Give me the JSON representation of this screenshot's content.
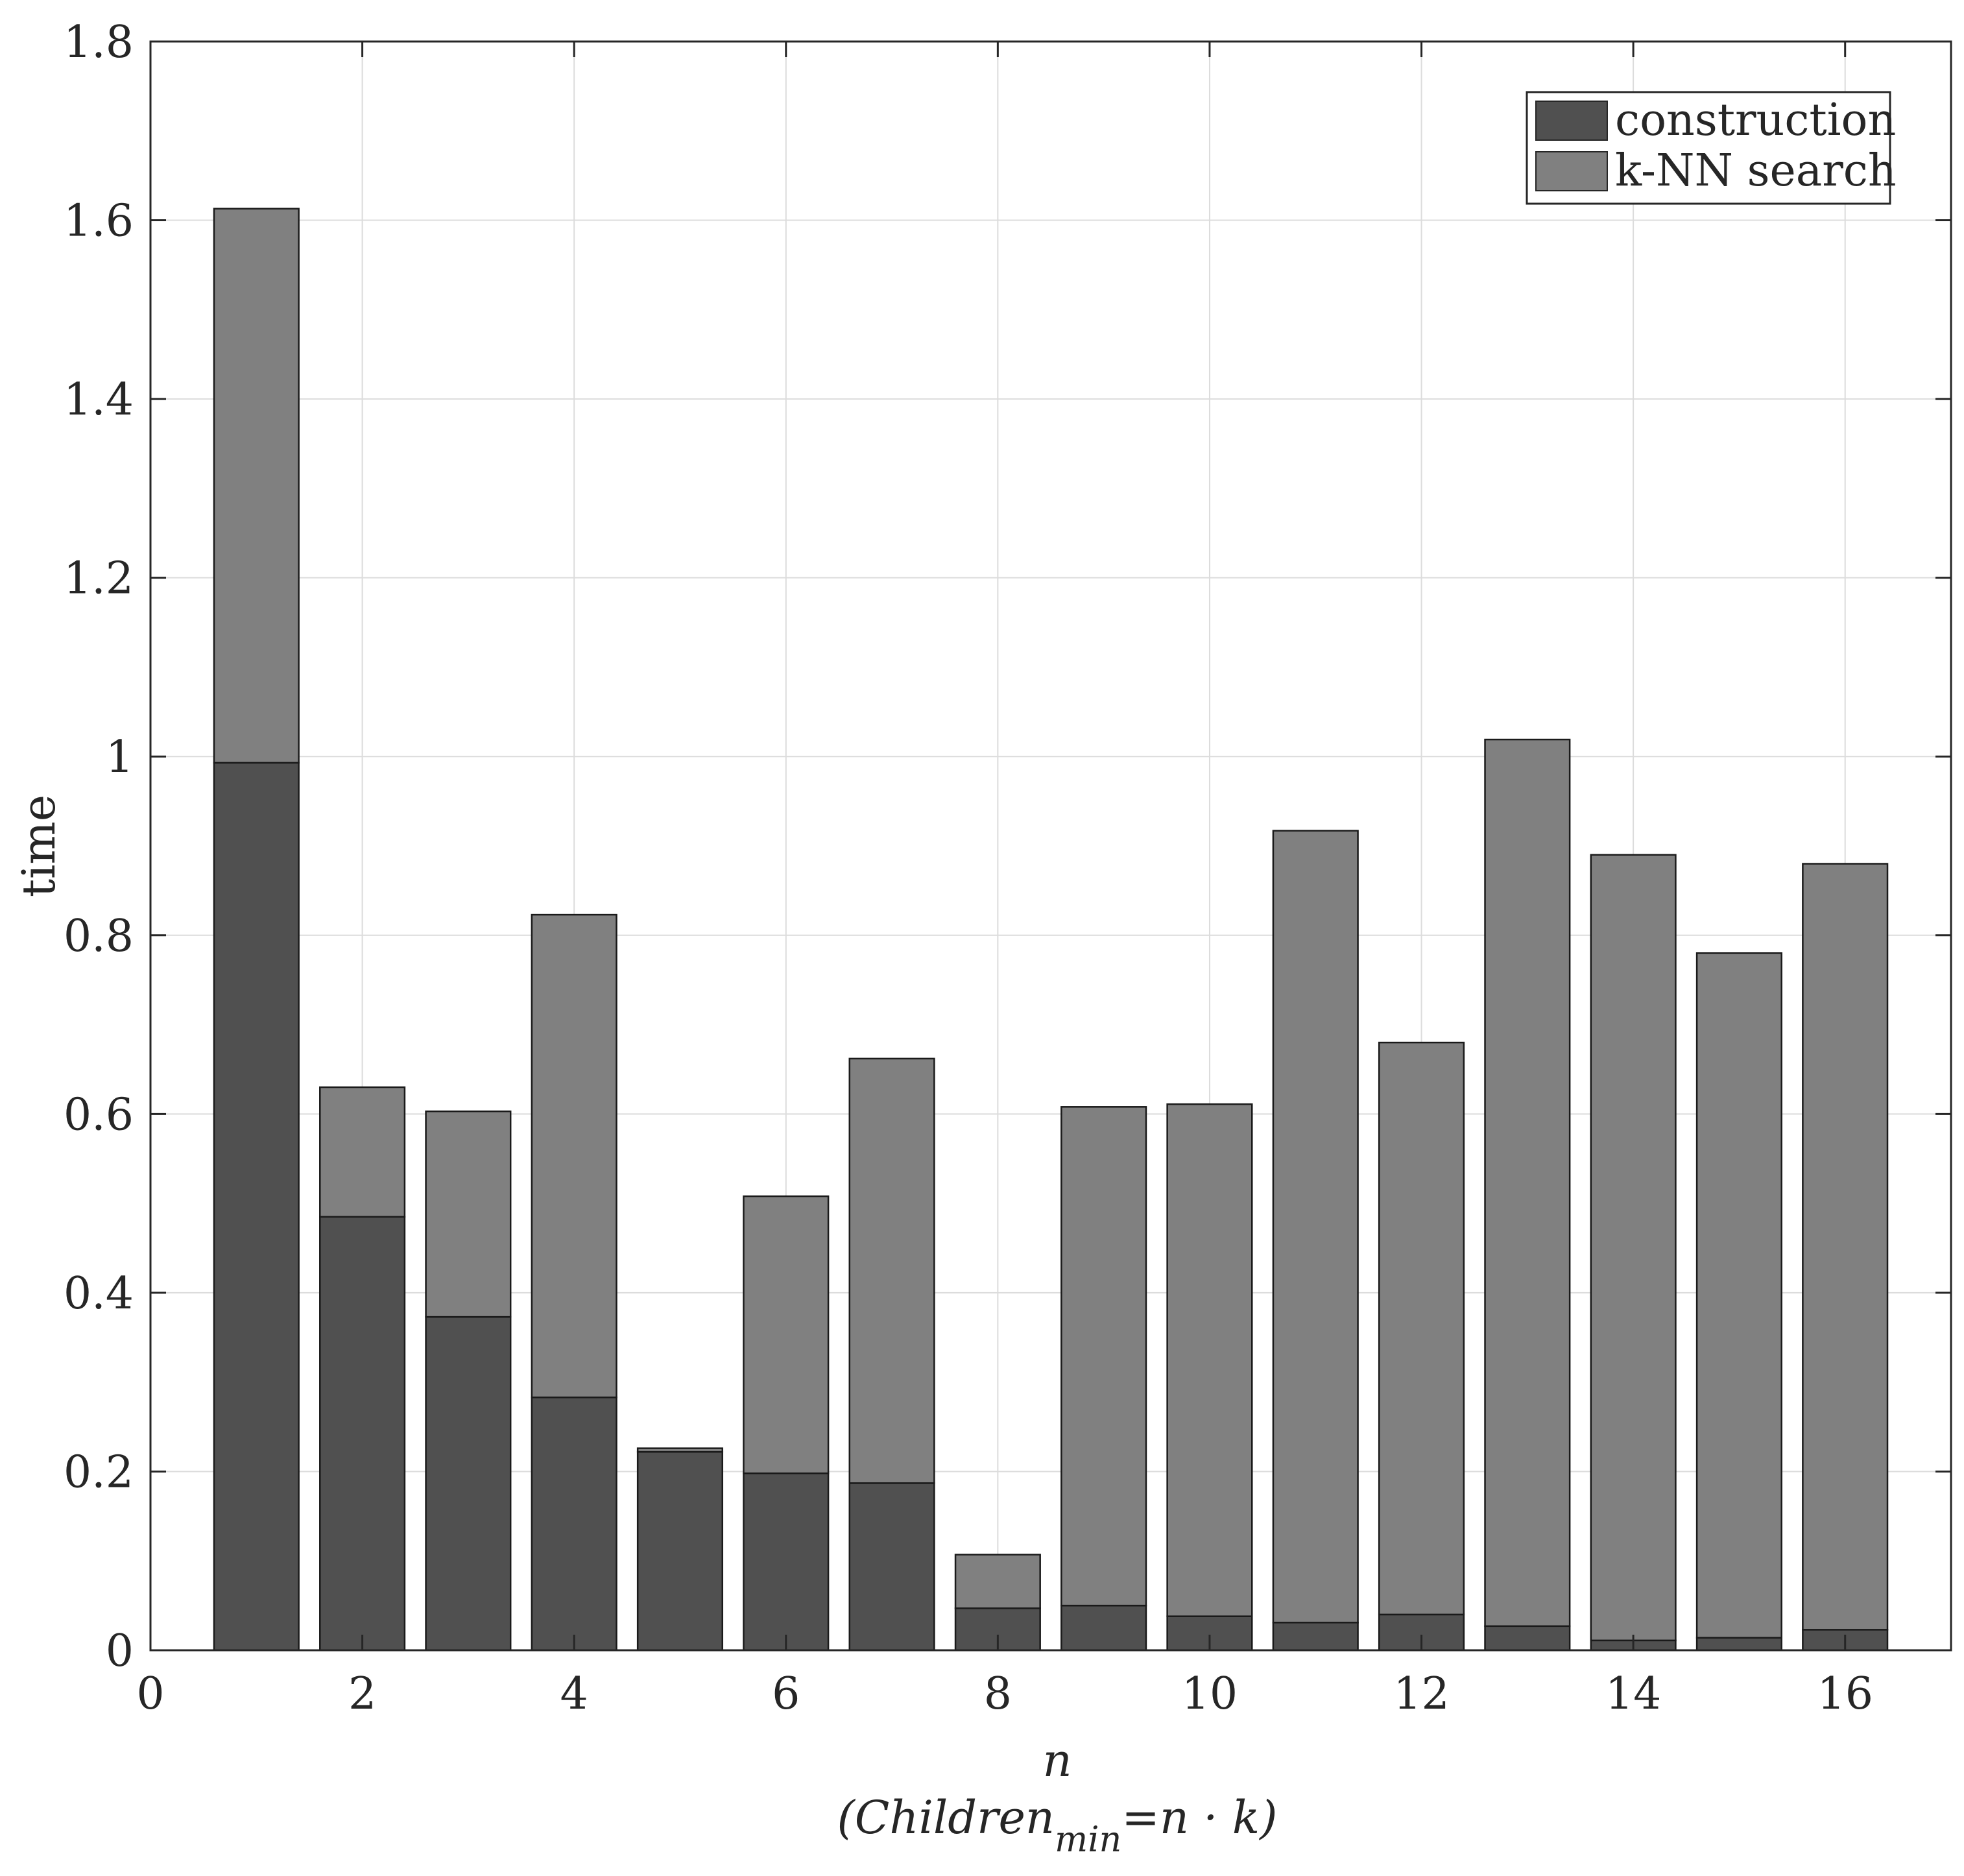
{
  "chart_data": {
    "type": "bar",
    "stacked": true,
    "title": "",
    "x": [
      1,
      2,
      3,
      4,
      5,
      6,
      7,
      8,
      9,
      10,
      11,
      12,
      13,
      14,
      15,
      16
    ],
    "series": [
      {
        "name": "construction",
        "color": "#505050",
        "values": [
          0.993,
          0.485,
          0.373,
          0.283,
          0.222,
          0.198,
          0.187,
          0.047,
          0.05,
          0.038,
          0.031,
          0.04,
          0.027,
          0.011,
          0.014,
          0.023
        ]
      },
      {
        "name": "k-NN search",
        "color": "#808080",
        "values": [
          0.62,
          0.145,
          0.23,
          0.54,
          0.004,
          0.31,
          0.475,
          0.06,
          0.558,
          0.573,
          0.886,
          0.64,
          0.992,
          0.879,
          0.766,
          0.857
        ]
      }
    ],
    "xlabel": "n",
    "xlabel_sub": {
      "prefix": "(Children",
      "subscript": "min",
      "suffix": "=n · k)"
    },
    "ylabel": "time",
    "xlim": [
      0,
      17
    ],
    "ylim": [
      0,
      1.8
    ],
    "xticks": [
      0,
      2,
      4,
      6,
      8,
      10,
      12,
      14,
      16
    ],
    "xtick_labels": [
      "0",
      "2",
      "4",
      "6",
      "8",
      "10",
      "12",
      "14",
      "16"
    ],
    "yticks": [
      0,
      0.2,
      0.4,
      0.6,
      0.8,
      1,
      1.2,
      1.4,
      1.6,
      1.8
    ],
    "ytick_labels": [
      "0",
      "0.2",
      "0.4",
      "0.6",
      "0.8",
      "1",
      "1.2",
      "1.4",
      "1.6",
      "1.8"
    ],
    "grid": true,
    "legend_position": "top-right"
  }
}
